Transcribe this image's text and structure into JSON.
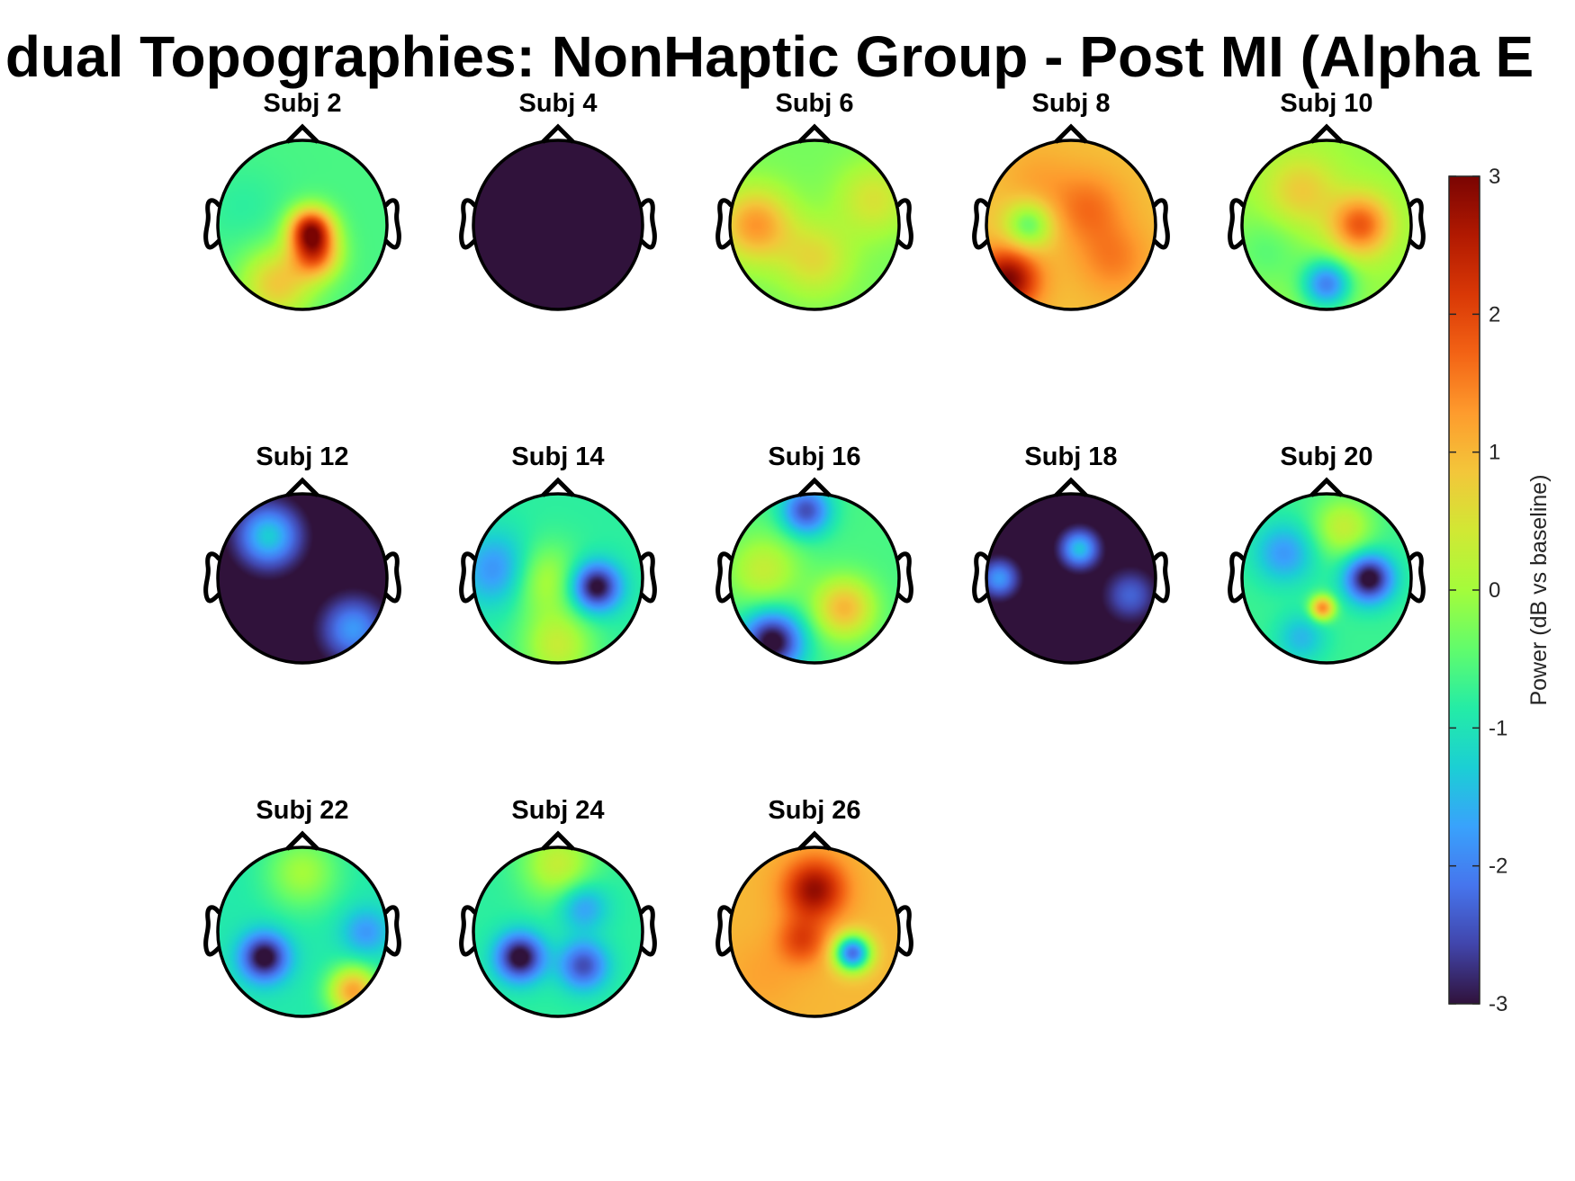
{
  "chart_data": {
    "type": "heatmap",
    "title": "dual Topographies: NonHaptic Group - Post MI (Alpha E",
    "colorbar": {
      "label": "Power (dB vs baseline)",
      "clim": [
        -3,
        3
      ],
      "ticks": [
        "3",
        "2",
        "1",
        "0",
        "-1",
        "-2",
        "-3"
      ],
      "colormap": "turbo",
      "colors": [
        "#30123b",
        "#4145ab",
        "#4675ed",
        "#39a2fc",
        "#1bcfd4",
        "#24eca6",
        "#61fc6c",
        "#a4fc3b",
        "#d1e834",
        "#f3c63a",
        "#fe9b2d",
        "#f36315",
        "#d93806",
        "#b11901",
        "#7a0402"
      ]
    },
    "panels": [
      {
        "label": "Subj 2",
        "blobs": [
          {
            "x": 0.1,
            "y": -0.05,
            "v": 2.3,
            "s": 0.18
          },
          {
            "x": 0.15,
            "y": -0.35,
            "v": 1.5,
            "s": 0.2
          },
          {
            "x": -0.3,
            "y": -0.7,
            "v": 0.8,
            "s": 0.3
          },
          {
            "x": -0.7,
            "y": 0.2,
            "v": -0.8,
            "s": 0.35
          }
        ],
        "base": -0.6
      },
      {
        "label": "Subj 4",
        "blobs": [],
        "base": -3.2
      },
      {
        "label": "Subj 6",
        "blobs": [
          {
            "x": -0.7,
            "y": 0.0,
            "v": 1.3,
            "s": 0.3
          },
          {
            "x": 0.0,
            "y": -0.4,
            "v": 0.6,
            "s": 0.3
          },
          {
            "x": 0.7,
            "y": 0.3,
            "v": 0.5,
            "s": 0.3
          }
        ],
        "base": -0.3
      },
      {
        "label": "Subj 8",
        "blobs": [
          {
            "x": -0.75,
            "y": -0.65,
            "v": 3.0,
            "s": 0.25
          },
          {
            "x": 0.2,
            "y": 0.2,
            "v": 1.6,
            "s": 0.3
          },
          {
            "x": -0.4,
            "y": 0.5,
            "v": 1.2,
            "s": 0.3
          },
          {
            "x": 0.5,
            "y": -0.4,
            "v": 1.5,
            "s": 0.3
          },
          {
            "x": -0.5,
            "y": 0.0,
            "v": -0.5,
            "s": 0.2
          }
        ],
        "base": 0.9
      },
      {
        "label": "Subj 10",
        "blobs": [
          {
            "x": 0.4,
            "y": 0.0,
            "v": 1.8,
            "s": 0.25
          },
          {
            "x": 0.0,
            "y": -0.7,
            "v": -2.0,
            "s": 0.2
          },
          {
            "x": -0.3,
            "y": 0.4,
            "v": 0.8,
            "s": 0.3
          },
          {
            "x": -0.7,
            "y": -0.3,
            "v": -0.5,
            "s": 0.3
          }
        ],
        "base": -0.1
      },
      {
        "label": "Subj 12",
        "blobs": [
          {
            "x": -0.4,
            "y": 0.5,
            "v": -1.3,
            "s": 0.25
          },
          {
            "x": 0.6,
            "y": -0.6,
            "v": -1.8,
            "s": 0.25
          }
        ],
        "base": -3.2
      },
      {
        "label": "Subj 14",
        "blobs": [
          {
            "x": 0.45,
            "y": -0.1,
            "v": -3.2,
            "s": 0.2
          },
          {
            "x": -0.7,
            "y": 0.1,
            "v": -2.0,
            "s": 0.3
          },
          {
            "x": 0.0,
            "y": -0.8,
            "v": 0.3,
            "s": 0.3
          },
          {
            "x": -0.2,
            "y": 0.0,
            "v": 0.2,
            "s": 0.3
          }
        ],
        "base": -0.8
      },
      {
        "label": "Subj 16",
        "blobs": [
          {
            "x": -0.5,
            "y": -0.75,
            "v": -3.2,
            "s": 0.25
          },
          {
            "x": -0.1,
            "y": 0.8,
            "v": -2.5,
            "s": 0.2
          },
          {
            "x": 0.35,
            "y": -0.35,
            "v": 1.0,
            "s": 0.25
          },
          {
            "x": -0.6,
            "y": 0.1,
            "v": 0.3,
            "s": 0.3
          }
        ],
        "base": -0.6
      },
      {
        "label": "Subj 18",
        "blobs": [
          {
            "x": 0.1,
            "y": 0.35,
            "v": -1.4,
            "s": 0.15
          },
          {
            "x": -0.85,
            "y": 0.0,
            "v": -1.8,
            "s": 0.15
          },
          {
            "x": 0.7,
            "y": -0.2,
            "v": -2.3,
            "s": 0.2
          }
        ],
        "base": -3.2
      },
      {
        "label": "Subj 20",
        "blobs": [
          {
            "x": 0.5,
            "y": 0.0,
            "v": -3.2,
            "s": 0.2
          },
          {
            "x": -0.05,
            "y": -0.35,
            "v": 1.5,
            "s": 0.1
          },
          {
            "x": -0.5,
            "y": 0.3,
            "v": -1.8,
            "s": 0.25
          },
          {
            "x": 0.2,
            "y": 0.6,
            "v": 0.3,
            "s": 0.25
          },
          {
            "x": -0.3,
            "y": -0.7,
            "v": -1.5,
            "s": 0.2
          }
        ],
        "base": -0.7
      },
      {
        "label": "Subj 22",
        "blobs": [
          {
            "x": -0.45,
            "y": -0.3,
            "v": -3.2,
            "s": 0.2
          },
          {
            "x": 0.6,
            "y": -0.7,
            "v": 1.2,
            "s": 0.2
          },
          {
            "x": 0.0,
            "y": 0.7,
            "v": 0.0,
            "s": 0.3
          },
          {
            "x": 0.75,
            "y": 0.0,
            "v": -1.8,
            "s": 0.2
          }
        ],
        "base": -0.9
      },
      {
        "label": "Subj 24",
        "blobs": [
          {
            "x": -0.45,
            "y": -0.3,
            "v": -3.2,
            "s": 0.2
          },
          {
            "x": 0.3,
            "y": -0.4,
            "v": -2.5,
            "s": 0.2
          },
          {
            "x": 0.0,
            "y": 0.8,
            "v": 0.3,
            "s": 0.3
          },
          {
            "x": 0.3,
            "y": 0.3,
            "v": -1.8,
            "s": 0.2
          }
        ],
        "base": -0.8
      },
      {
        "label": "Subj 26",
        "blobs": [
          {
            "x": 0.0,
            "y": 0.5,
            "v": 2.8,
            "s": 0.25
          },
          {
            "x": -0.15,
            "y": -0.1,
            "v": 2.0,
            "s": 0.2
          },
          {
            "x": 0.45,
            "y": -0.25,
            "v": -2.2,
            "s": 0.15
          },
          {
            "x": -0.6,
            "y": -0.5,
            "v": 1.2,
            "s": 0.3
          }
        ],
        "base": 1.0
      }
    ]
  }
}
